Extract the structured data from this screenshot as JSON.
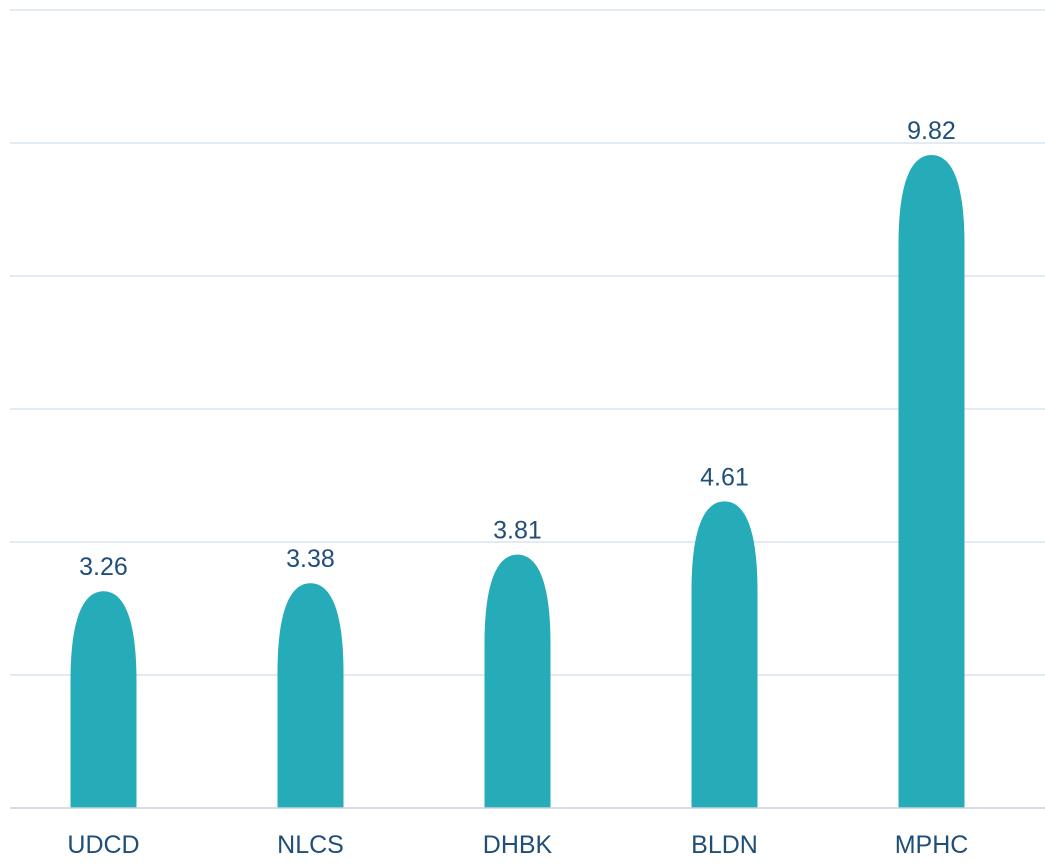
{
  "chart_data": {
    "type": "bar",
    "title": "",
    "xlabel": "",
    "ylabel": "",
    "categories": [
      "UDCD",
      "NLCS",
      "DHBK",
      "BLDN",
      "MPHC"
    ],
    "values": [
      3.26,
      3.38,
      3.81,
      4.61,
      9.82
    ],
    "value_labels": [
      "3.26",
      "3.38",
      "3.81",
      "4.61",
      "9.82"
    ],
    "ylim": [
      0,
      12
    ],
    "y_grid_step": 2,
    "grid": true,
    "legend": "none",
    "bar_shape": "rounded-top",
    "colors": {
      "bar": "#25acb8",
      "label": "#1f4e79",
      "grid": "#d9e3f0"
    }
  }
}
